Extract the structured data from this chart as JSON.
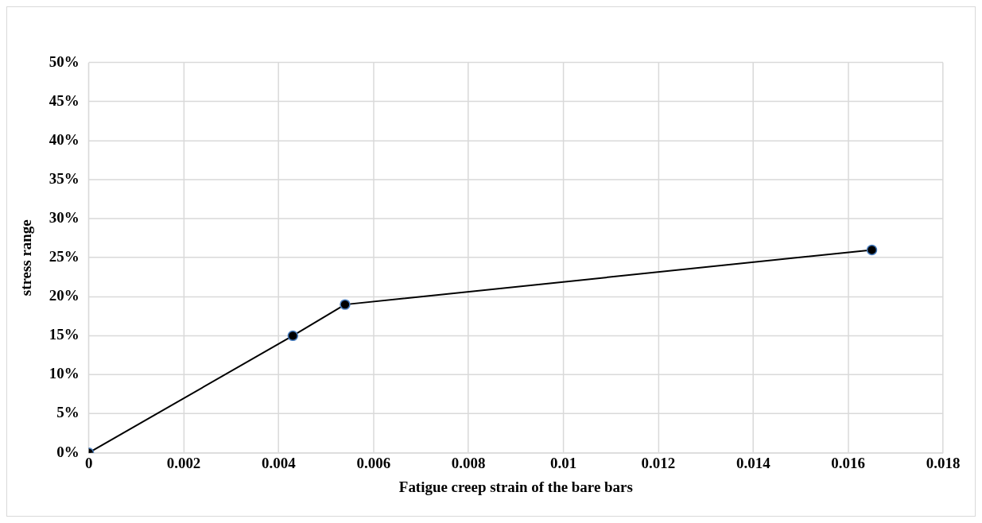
{
  "chart_data": {
    "type": "line",
    "xlabel": "Fatigue creep strain of the bare bars",
    "ylabel": "stress range",
    "x": [
      0,
      0.0043,
      0.0054,
      0.0165
    ],
    "series": [
      {
        "color": "#000000",
        "values": [
          0,
          15,
          19,
          26
        ]
      }
    ],
    "xlim": [
      0,
      0.018
    ],
    "xticks": [
      0,
      0.002,
      0.004,
      0.006,
      0.008,
      0.01,
      0.012,
      0.014,
      0.016,
      0.018
    ],
    "ylim": [
      0,
      50
    ],
    "yticks": [
      {
        "value": 0,
        "label": "0%"
      },
      {
        "value": 5,
        "label": "5%"
      },
      {
        "value": 10,
        "label": "10%"
      },
      {
        "value": 15,
        "label": "15%"
      },
      {
        "value": 20,
        "label": "20%"
      },
      {
        "value": 25,
        "label": "25%"
      },
      {
        "value": 30,
        "label": "30%"
      },
      {
        "value": 35,
        "label": "35%"
      },
      {
        "value": 40,
        "label": "40%"
      },
      {
        "value": 45,
        "label": "45%"
      },
      {
        "value": 50,
        "label": "50%"
      }
    ],
    "grid": true,
    "marker": "circle",
    "line_style": "solid",
    "legend": false
  }
}
